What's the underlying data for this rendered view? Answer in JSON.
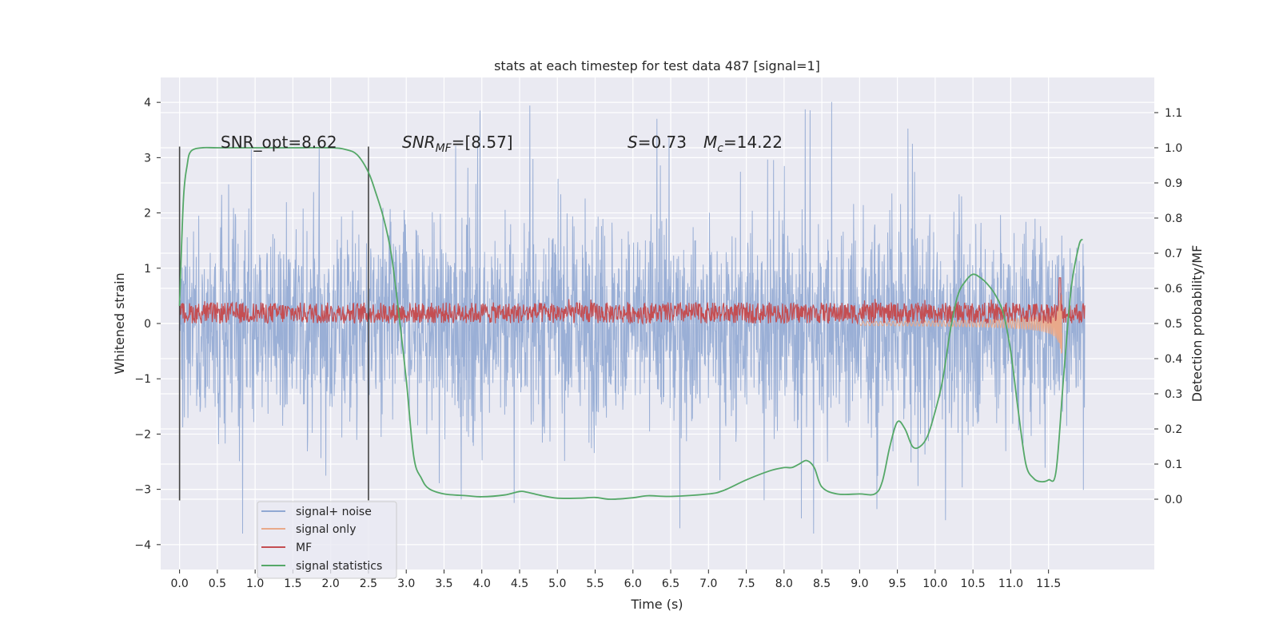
{
  "chart_data": {
    "type": "line",
    "title": "stats at each timestep for test data 487 [signal=1]",
    "xlabel": "Time (s)",
    "ylabel": "Whitened strain",
    "y2label": "Detection probability/MF",
    "xlim": [
      -0.25,
      12.9
    ],
    "ylim": [
      -4.45,
      4.45
    ],
    "y2lim": [
      -0.2,
      1.2
    ],
    "xticks": [
      "0.0",
      "0.5",
      "1.0",
      "1.5",
      "2.0",
      "2.5",
      "3.0",
      "3.5",
      "4.0",
      "4.5",
      "5.0",
      "5.5",
      "6.0",
      "6.5",
      "7.0",
      "7.5",
      "8.0",
      "8.5",
      "9.0",
      "9.5",
      "10.0",
      "10.5",
      "11.0",
      "11.5"
    ],
    "yticks": [
      "4",
      "3",
      "2",
      "1",
      "0",
      "−1",
      "−2",
      "−3",
      "−4"
    ],
    "y2ticks": [
      "1.1",
      "1.0",
      "0.9",
      "0.8",
      "0.7",
      "0.6",
      "0.5",
      "0.4",
      "0.3",
      "0.2",
      "0.1",
      "0.0"
    ],
    "grid": true,
    "legend_placement": "lower-left",
    "annotations": {
      "snr_opt": "SNR_opt=8.62",
      "snr_mf_sym": "SNR",
      "snr_mf_sub": "MF",
      "snr_mf_val": "=[8.57]",
      "s_sym": "S",
      "s_val": "=0.73",
      "mc_sym": "M",
      "mc_sub": "c",
      "mc_val": "=14.22"
    },
    "vlines": [
      0.0,
      2.5
    ],
    "vline_range": [
      -3.2,
      3.2
    ],
    "series": [
      {
        "name": "signal+ noise",
        "color": "#91a8d3",
        "kind": "noise",
        "x_range": [
          0.0,
          11.98
        ],
        "typical_amplitude": 1.3,
        "peak_amplitude": 4.1
      },
      {
        "name": "signal only",
        "color": "#e9a98a",
        "kind": "chirp",
        "x_range": [
          9.0,
          11.68
        ],
        "peak_amplitude": 1.7
      },
      {
        "name": "MF",
        "color": "#c44e52",
        "kind": "band",
        "axis": "right",
        "x_range": [
          0.0,
          11.98
        ],
        "band": [
          0.5,
          0.56
        ],
        "spike": {
          "x": 11.65,
          "y": 0.63
        }
      },
      {
        "name": "signal statistics",
        "color": "#55a868",
        "axis": "right",
        "x": [
          0.0,
          0.05,
          0.1,
          0.15,
          0.3,
          0.5,
          1.0,
          1.5,
          2.0,
          2.2,
          2.35,
          2.5,
          2.6,
          2.7,
          2.8,
          2.9,
          3.0,
          3.1,
          3.2,
          3.3,
          3.5,
          3.8,
          4.0,
          4.3,
          4.5,
          4.6,
          4.8,
          5.0,
          5.3,
          5.5,
          5.7,
          6.0,
          6.2,
          6.5,
          7.0,
          7.2,
          7.5,
          7.8,
          8.0,
          8.1,
          8.2,
          8.3,
          8.4,
          8.5,
          8.7,
          9.0,
          9.2,
          9.3,
          9.4,
          9.5,
          9.6,
          9.7,
          9.8,
          9.9,
          10.0,
          10.1,
          10.2,
          10.3,
          10.4,
          10.5,
          10.6,
          10.7,
          10.8,
          10.9,
          11.0,
          11.1,
          11.2,
          11.3,
          11.4,
          11.5,
          11.6,
          11.7,
          11.8,
          11.9,
          11.95
        ],
        "values": [
          0.55,
          0.85,
          0.95,
          0.99,
          1.0,
          1.0,
          1.0,
          1.0,
          1.0,
          0.995,
          0.98,
          0.93,
          0.87,
          0.8,
          0.7,
          0.53,
          0.34,
          0.12,
          0.06,
          0.03,
          0.015,
          0.01,
          0.007,
          0.012,
          0.022,
          0.02,
          0.01,
          0.003,
          0.003,
          0.005,
          0.0,
          0.004,
          0.01,
          0.008,
          0.015,
          0.025,
          0.055,
          0.08,
          0.09,
          0.09,
          0.1,
          0.11,
          0.09,
          0.035,
          0.015,
          0.015,
          0.015,
          0.05,
          0.15,
          0.22,
          0.2,
          0.15,
          0.15,
          0.18,
          0.25,
          0.34,
          0.48,
          0.58,
          0.62,
          0.64,
          0.63,
          0.61,
          0.58,
          0.53,
          0.42,
          0.25,
          0.1,
          0.06,
          0.05,
          0.055,
          0.08,
          0.35,
          0.6,
          0.72,
          0.74
        ]
      }
    ]
  }
}
